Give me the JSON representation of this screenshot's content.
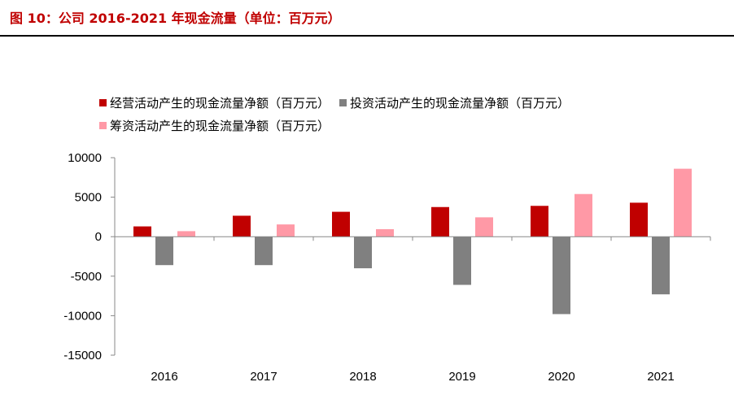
{
  "figure": {
    "title": "图 10：公司 2016-2021 年现金流量（单位：百万元）"
  },
  "chart_data": {
    "type": "bar",
    "categories": [
      "2016",
      "2017",
      "2018",
      "2019",
      "2020",
      "2021"
    ],
    "series": [
      {
        "name": "经营活动产生的现金流量净额（百万元）",
        "color": "#c00000",
        "values": [
          1300,
          2650,
          3150,
          3750,
          3900,
          4300
        ]
      },
      {
        "name": "投资活动产生的现金流量净额（百万元）",
        "color": "#808080",
        "values": [
          -3600,
          -3600,
          -4000,
          -6100,
          -9800,
          -7300
        ]
      },
      {
        "name": "筹资活动产生的现金流量净额（百万元）",
        "color": "#ff99a6",
        "values": [
          700,
          1550,
          950,
          2450,
          5400,
          8600
        ]
      }
    ],
    "yticks": [
      "10000",
      "5000",
      "0",
      "-5000",
      "-10000",
      "-15000"
    ],
    "ylim": [
      -15000,
      10000
    ],
    "grid": false,
    "legend_position": "top-left"
  }
}
